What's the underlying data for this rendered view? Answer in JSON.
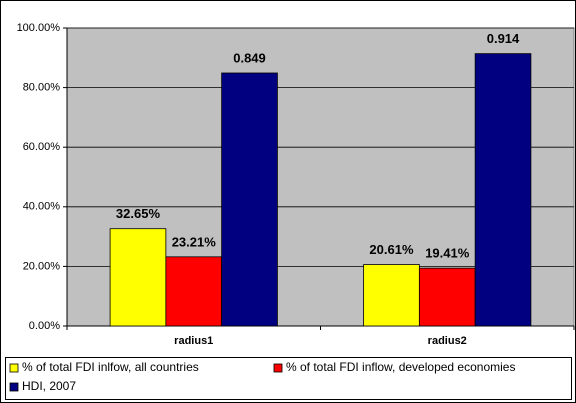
{
  "chart_data": {
    "type": "bar",
    "categories": [
      "radius1",
      "radius2"
    ],
    "series": [
      {
        "name": "% of total FDI inlfow, all countries",
        "color": "#ffff00",
        "values": [
          32.65,
          20.61
        ],
        "value_labels": [
          "32.65%",
          "20.61%"
        ]
      },
      {
        "name": "% of total FDI inflow, developed economies",
        "color": "#ff0000",
        "values": [
          23.21,
          19.41
        ],
        "value_labels": [
          "23.21%",
          "19.41%"
        ]
      },
      {
        "name": "HDI, 2007",
        "color": "#000080",
        "values": [
          84.9,
          91.4
        ],
        "value_labels": [
          "0.849",
          "0.914"
        ]
      }
    ],
    "ylim": [
      0,
      100
    ],
    "yticks": [
      {
        "value": 0,
        "label": "0.00%"
      },
      {
        "value": 20,
        "label": "20.00%"
      },
      {
        "value": 40,
        "label": "40.00%"
      },
      {
        "value": 60,
        "label": "60.00%"
      },
      {
        "value": 80,
        "label": "80.00%"
      },
      {
        "value": 100,
        "label": "100.00%"
      }
    ],
    "grid": true,
    "legend": "bottom"
  }
}
